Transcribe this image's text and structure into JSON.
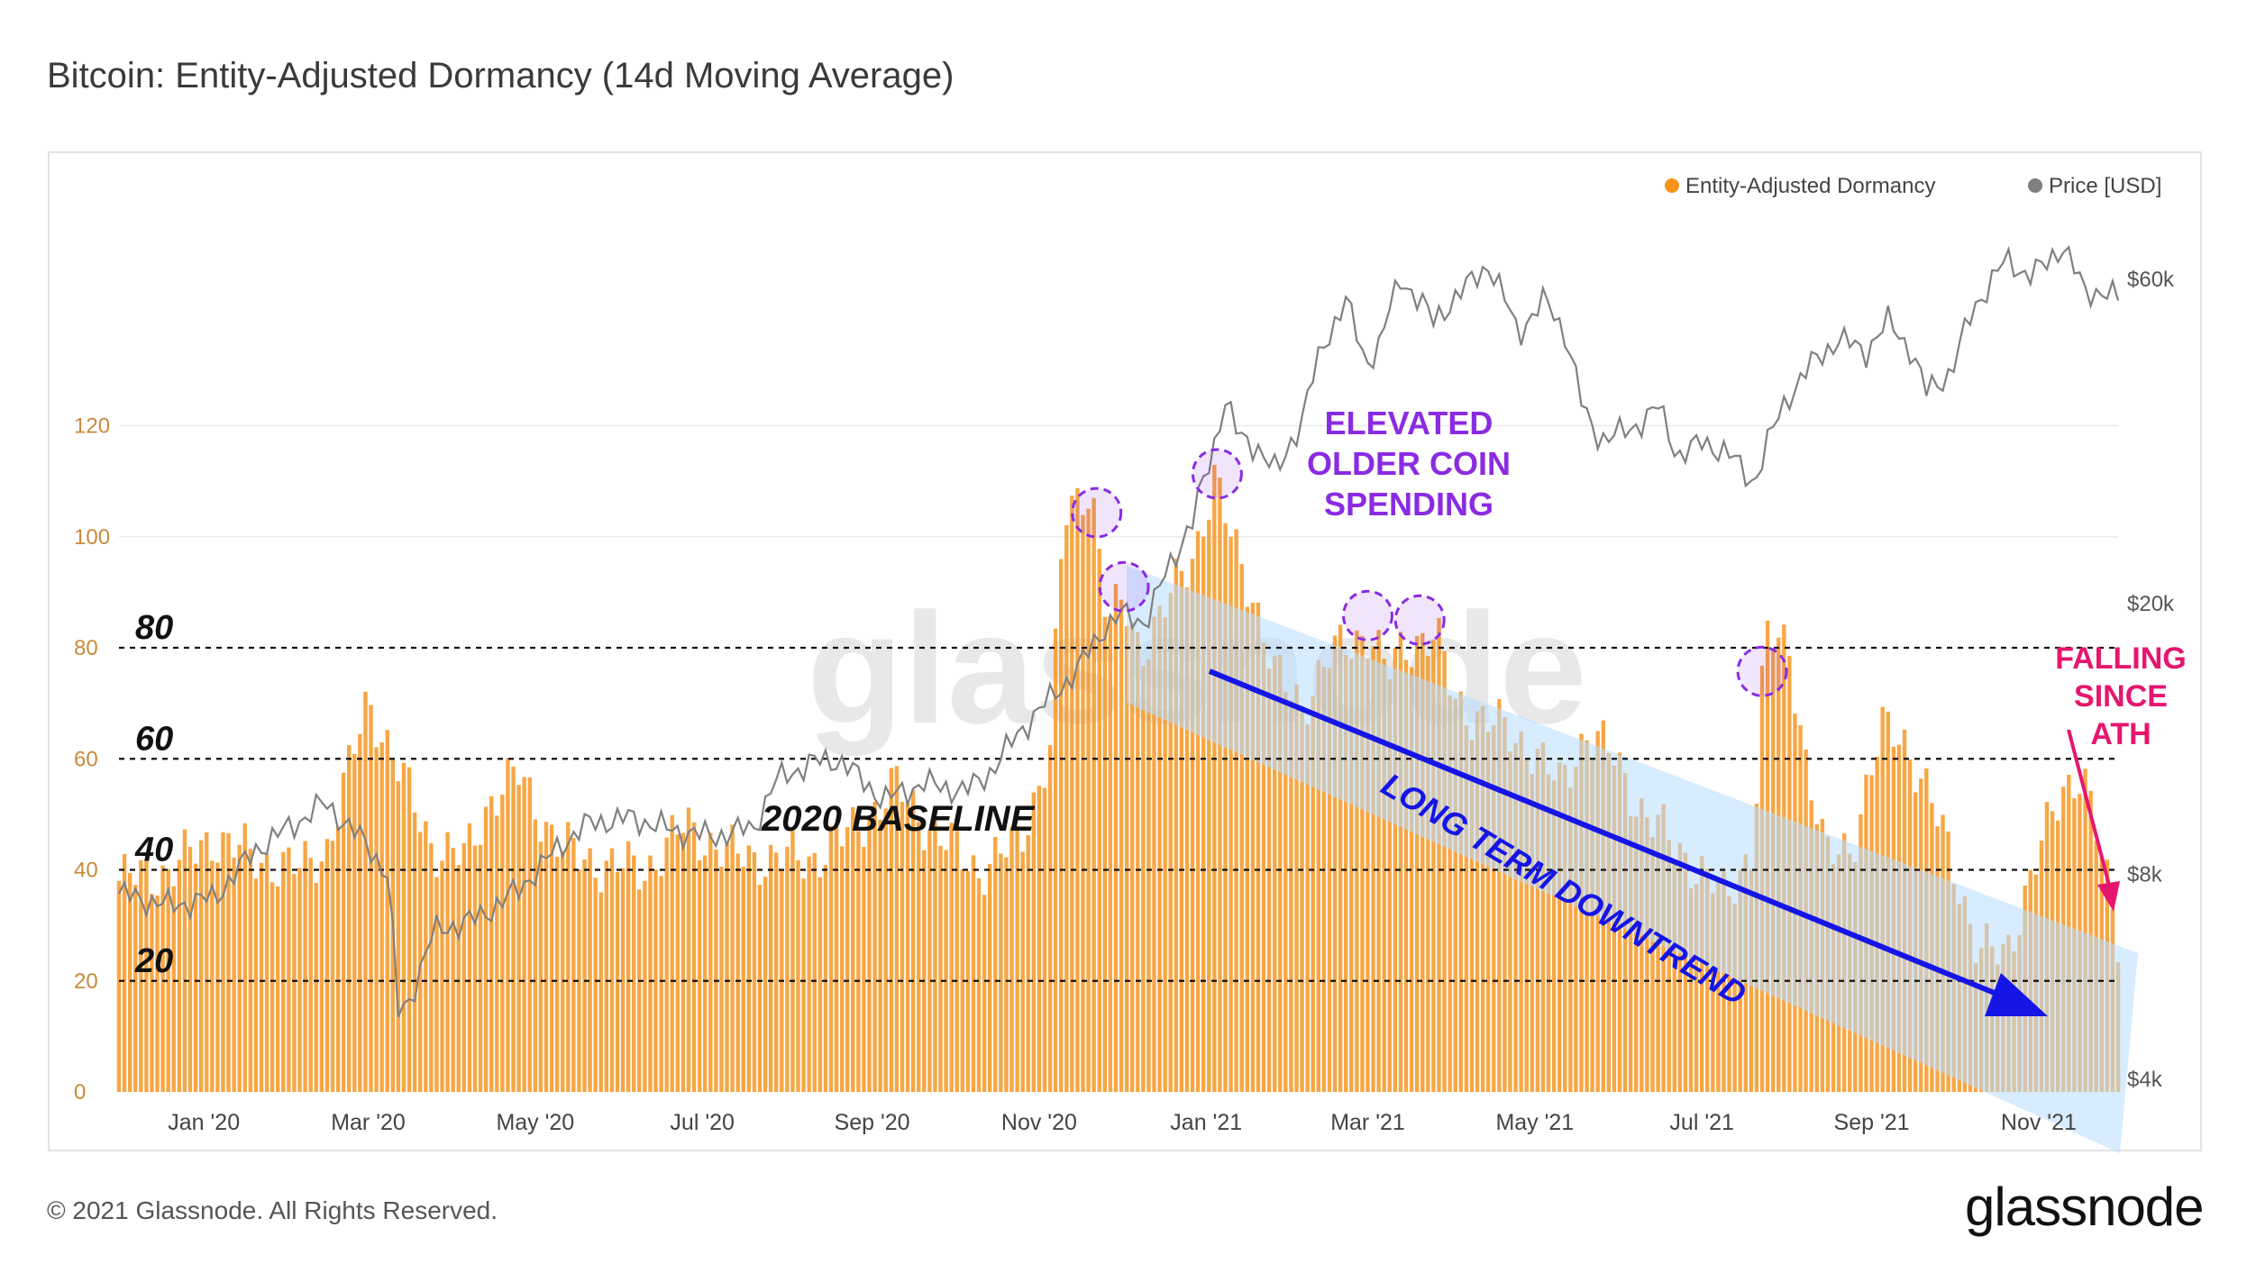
{
  "title": "Bitcoin: Entity-Adjusted Dormancy (14d Moving Average)",
  "footer": {
    "copyright": "© 2021 Glassnode. All Rights Reserved.",
    "logo": "glassnode"
  },
  "watermark": "glassnode",
  "colors": {
    "dormancy": "#f7931a",
    "price": "#8a8a8a",
    "annotation_purple": "#8a2be2",
    "annotation_blue": "#1515e6",
    "annotation_pink": "#e6166e",
    "channel": "#cfe6ff"
  },
  "chart_data": {
    "type": "bar",
    "title": "Bitcoin: Entity-Adjusted Dormancy (14d Moving Average)",
    "x_range": [
      "2019-12-01",
      "2021-11-30"
    ],
    "x_ticks": [
      "Jan '20",
      "Mar '20",
      "May '20",
      "Jul '20",
      "Sep '20",
      "Nov '20",
      "Jan '21",
      "Mar '21",
      "May '21",
      "Jul '21",
      "Sep '21",
      "Nov '21"
    ],
    "left_axis": {
      "label": "Entity-Adjusted Dormancy",
      "ticks": [
        "0",
        "20",
        "40",
        "60",
        "80",
        "100",
        "120"
      ],
      "tick_values": [
        0,
        20,
        40,
        60,
        80,
        100,
        120
      ],
      "range": [
        0,
        148
      ]
    },
    "right_axis": {
      "label": "Price [USD]",
      "scale": "log",
      "ticks": [
        "$4k",
        "$8k",
        "$20k",
        "$60k"
      ],
      "tick_values": [
        4000,
        8000,
        20000,
        60000
      ]
    },
    "legend": {
      "position": "top-right",
      "items": [
        {
          "label": "Entity-Adjusted Dormancy",
          "color": "#f7931a"
        },
        {
          "label": "Price [USD]",
          "color": "#808080"
        }
      ]
    },
    "series": [
      {
        "name": "Entity-Adjusted Dormancy",
        "type": "bar",
        "axis": "left",
        "dates": [
          "2019-12-01",
          "2019-12-20",
          "2020-01-05",
          "2020-01-20",
          "2020-02-05",
          "2020-02-15",
          "2020-02-22",
          "2020-03-01",
          "2020-03-12",
          "2020-03-25",
          "2020-04-05",
          "2020-04-15",
          "2020-04-25",
          "2020-05-10",
          "2020-05-25",
          "2020-06-10",
          "2020-06-25",
          "2020-07-10",
          "2020-07-25",
          "2020-08-10",
          "2020-08-25",
          "2020-09-10",
          "2020-09-25",
          "2020-10-10",
          "2020-10-25",
          "2020-11-05",
          "2020-11-10",
          "2020-11-20",
          "2020-11-26",
          "2020-12-02",
          "2020-12-08",
          "2020-12-15",
          "2020-12-22",
          "2020-12-28",
          "2021-01-04",
          "2021-01-10",
          "2021-01-18",
          "2021-01-26",
          "2021-02-05",
          "2021-02-15",
          "2021-02-25",
          "2021-03-02",
          "2021-03-08",
          "2021-03-14",
          "2021-03-20",
          "2021-03-26",
          "2021-04-02",
          "2021-04-10",
          "2021-04-20",
          "2021-04-30",
          "2021-05-10",
          "2021-05-20",
          "2021-05-30",
          "2021-06-10",
          "2021-06-20",
          "2021-06-30",
          "2021-07-10",
          "2021-07-20",
          "2021-07-24",
          "2021-08-02",
          "2021-08-08",
          "2021-08-15",
          "2021-08-25",
          "2021-09-05",
          "2021-09-12",
          "2021-09-20",
          "2021-09-30",
          "2021-10-10",
          "2021-10-20",
          "2021-10-30",
          "2021-11-10",
          "2021-11-17",
          "2021-11-30"
        ],
        "values": [
          38,
          40,
          46,
          42,
          40,
          44,
          56,
          71,
          58,
          44,
          42,
          53,
          57,
          44,
          41,
          40,
          48,
          43,
          42,
          42,
          47,
          55,
          46,
          40,
          45,
          62,
          103,
          110,
          84,
          88,
          80,
          85,
          92,
          98,
          110,
          100,
          90,
          75,
          70,
          78,
          82,
          83,
          75,
          80,
          82,
          82,
          70,
          68,
          65,
          62,
          55,
          65,
          60,
          50,
          45,
          40,
          35,
          45,
          82,
          80,
          60,
          42,
          45,
          65,
          65,
          55,
          43,
          25,
          25,
          40,
          55,
          58,
          28
        ]
      },
      {
        "name": "Price [USD]",
        "type": "line",
        "axis": "right",
        "dates": [
          "2019-12-01",
          "2019-12-20",
          "2020-01-05",
          "2020-01-20",
          "2020-02-05",
          "2020-02-14",
          "2020-03-01",
          "2020-03-08",
          "2020-03-12",
          "2020-03-16",
          "2020-03-25",
          "2020-04-10",
          "2020-04-25",
          "2020-05-10",
          "2020-05-20",
          "2020-06-05",
          "2020-06-20",
          "2020-07-05",
          "2020-07-20",
          "2020-07-28",
          "2020-08-10",
          "2020-08-20",
          "2020-09-05",
          "2020-09-20",
          "2020-10-05",
          "2020-10-15",
          "2020-10-25",
          "2020-11-05",
          "2020-11-15",
          "2020-11-25",
          "2020-12-01",
          "2020-12-10",
          "2020-12-17",
          "2020-12-27",
          "2021-01-03",
          "2021-01-08",
          "2021-01-13",
          "2021-01-20",
          "2021-01-27",
          "2021-02-05",
          "2021-02-12",
          "2021-02-21",
          "2021-02-28",
          "2021-03-05",
          "2021-03-13",
          "2021-03-20",
          "2021-03-25",
          "2021-04-05",
          "2021-04-14",
          "2021-04-20",
          "2021-04-25",
          "2021-05-05",
          "2021-05-12",
          "2021-05-19",
          "2021-05-25",
          "2021-06-05",
          "2021-06-15",
          "2021-06-22",
          "2021-07-01",
          "2021-07-10",
          "2021-07-20",
          "2021-07-25",
          "2021-08-01",
          "2021-08-10",
          "2021-08-20",
          "2021-08-30",
          "2021-09-07",
          "2021-09-15",
          "2021-09-21",
          "2021-09-30",
          "2021-10-08",
          "2021-10-15",
          "2021-10-20",
          "2021-10-28",
          "2021-11-03",
          "2021-11-10",
          "2021-11-18",
          "2021-11-25",
          "2021-11-30"
        ],
        "values": [
          7500,
          7200,
          7400,
          8700,
          9600,
          10200,
          8800,
          8000,
          5000,
          5200,
          6600,
          6900,
          7600,
          8800,
          9500,
          9700,
          9300,
          9100,
          9400,
          11000,
          11700,
          11800,
          10300,
          10900,
          10600,
          11400,
          13000,
          14500,
          16000,
          18500,
          19300,
          18800,
          22000,
          26500,
          33000,
          40000,
          35000,
          34000,
          31000,
          37500,
          47000,
          56000,
          45000,
          48000,
          60000,
          56000,
          52000,
          58000,
          63000,
          56000,
          50000,
          56000,
          50000,
          38000,
          35000,
          36000,
          39000,
          33000,
          34500,
          33500,
          30000,
          34500,
          40000,
          45000,
          49000,
          47000,
          52000,
          47500,
          41000,
          43800,
          54000,
          60000,
          64000,
          61000,
          62500,
          67500,
          57000,
          58000,
          56000
        ]
      }
    ],
    "reference_lines": [
      {
        "value": 20,
        "label": "20"
      },
      {
        "value": 40,
        "label": "40"
      },
      {
        "value": 60,
        "label": "60"
      },
      {
        "value": 80,
        "label": "80"
      }
    ],
    "annotations": {
      "baseline": "2020 BASELINE",
      "elevated": [
        "ELEVATED",
        "OLDER COIN",
        "SPENDING"
      ],
      "downtrend": "LONG TERM DOWNTREND",
      "falling": [
        "FALLING",
        "SINCE",
        "ATH"
      ],
      "circle_peaks": [
        "2020-11-22",
        "2020-12-02",
        "2021-01-05",
        "2021-03-01",
        "2021-03-20",
        "2021-07-23"
      ]
    }
  }
}
